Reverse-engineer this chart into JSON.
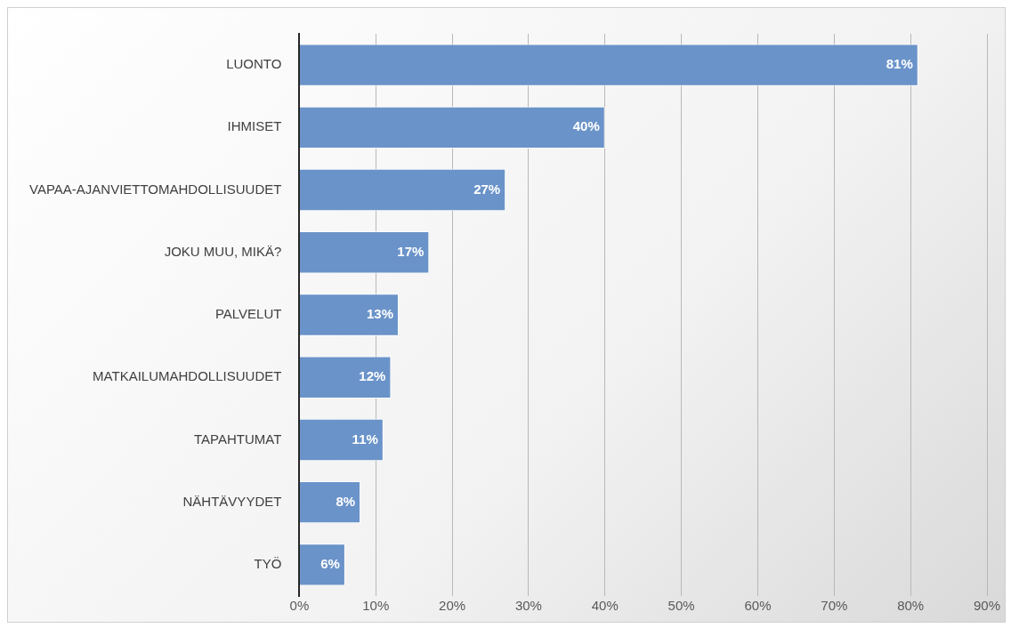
{
  "chart_data": {
    "type": "bar",
    "orientation": "horizontal",
    "categories": [
      "LUONTO",
      "IHMISET",
      "VAPAA-AJANVIETTOMAHDOLLISUUDET",
      "JOKU MUU, MIKÄ?",
      "PALVELUT",
      "MATKAILUMAHDOLLISUUDET",
      "TAPAHTUMAT",
      "NÄHTÄVYYDET",
      "TYÖ"
    ],
    "values": [
      81,
      40,
      27,
      17,
      13,
      12,
      11,
      8,
      6
    ],
    "value_labels": [
      "81%",
      "40%",
      "27%",
      "17%",
      "13%",
      "12%",
      "11%",
      "8%",
      "6%"
    ],
    "color": "#6a93c9",
    "xlim": [
      0,
      90
    ],
    "xticks": [
      {
        "value": 0,
        "label": "0%"
      },
      {
        "value": 10,
        "label": "10%"
      },
      {
        "value": 20,
        "label": "20%"
      },
      {
        "value": 30,
        "label": "30%"
      },
      {
        "value": 40,
        "label": "40%"
      },
      {
        "value": 50,
        "label": "50%"
      },
      {
        "value": 60,
        "label": "60%"
      },
      {
        "value": 70,
        "label": "70%"
      },
      {
        "value": 80,
        "label": "80%"
      },
      {
        "value": 90,
        "label": "90%"
      }
    ],
    "grid": "x",
    "legend": false
  }
}
